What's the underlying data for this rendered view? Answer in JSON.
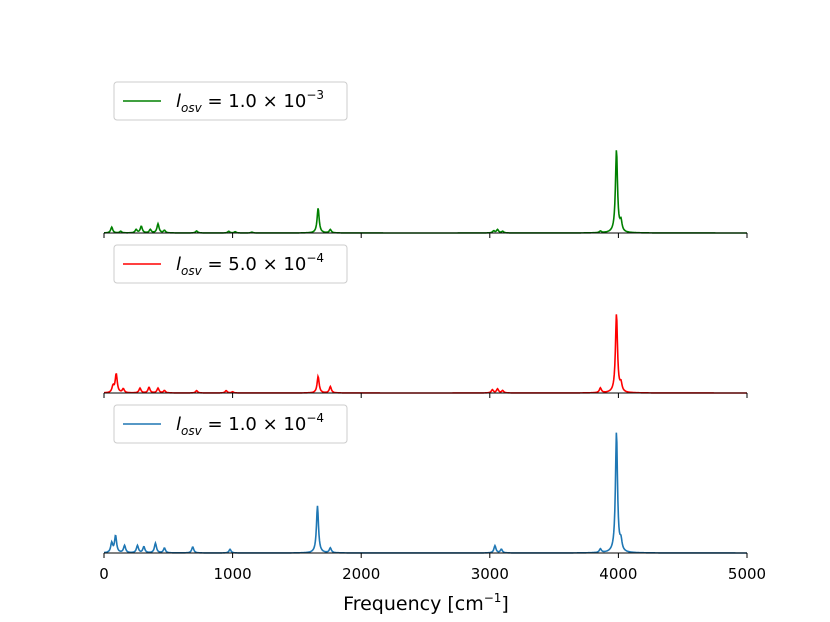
{
  "chart_data": {
    "type": "line",
    "xlabel": "Frequency [cm",
    "xlabel_sup": "−1",
    "xlabel_close": "]",
    "xlim": [
      0,
      5000
    ],
    "x_ticks": [
      0,
      1000,
      2000,
      3000,
      4000,
      5000
    ],
    "x_tick_labels": [
      "0",
      "1000",
      "2000",
      "3000",
      "4000",
      "5000"
    ],
    "grid": false,
    "panels": [
      {
        "legend": {
          "symbol": "l",
          "subscript": "osv",
          "eq": " = 1.0 × 10",
          "exp": "−3"
        },
        "legend_position": "upper-left",
        "color": "#008000",
        "ylim": [
          0,
          1.0
        ],
        "peaks": [
          {
            "x": 60,
            "y": 0.07
          },
          {
            "x": 130,
            "y": 0.02
          },
          {
            "x": 250,
            "y": 0.04
          },
          {
            "x": 290,
            "y": 0.08
          },
          {
            "x": 360,
            "y": 0.04
          },
          {
            "x": 420,
            "y": 0.11
          },
          {
            "x": 470,
            "y": 0.03
          },
          {
            "x": 720,
            "y": 0.025
          },
          {
            "x": 970,
            "y": 0.02
          },
          {
            "x": 1020,
            "y": 0.015
          },
          {
            "x": 1150,
            "y": 0.01
          },
          {
            "x": 1665,
            "y": 0.3
          },
          {
            "x": 1760,
            "y": 0.04
          },
          {
            "x": 3030,
            "y": 0.025
          },
          {
            "x": 3060,
            "y": 0.04
          },
          {
            "x": 3100,
            "y": 0.02
          },
          {
            "x": 3860,
            "y": 0.02
          },
          {
            "x": 3985,
            "y": 1.0
          },
          {
            "x": 4020,
            "y": 0.12
          }
        ]
      },
      {
        "legend": {
          "symbol": "l",
          "subscript": "osv",
          "eq": " = 5.0 × 10",
          "exp": "−4"
        },
        "legend_position": "upper-left",
        "color": "#ff0000",
        "ylim": [
          0,
          1.0
        ],
        "peaks": [
          {
            "x": 70,
            "y": 0.08
          },
          {
            "x": 95,
            "y": 0.24
          },
          {
            "x": 150,
            "y": 0.05
          },
          {
            "x": 280,
            "y": 0.06
          },
          {
            "x": 350,
            "y": 0.07
          },
          {
            "x": 420,
            "y": 0.06
          },
          {
            "x": 470,
            "y": 0.03
          },
          {
            "x": 720,
            "y": 0.03
          },
          {
            "x": 950,
            "y": 0.03
          },
          {
            "x": 1000,
            "y": 0.015
          },
          {
            "x": 1665,
            "y": 0.21
          },
          {
            "x": 1760,
            "y": 0.08
          },
          {
            "x": 3020,
            "y": 0.04
          },
          {
            "x": 3060,
            "y": 0.05
          },
          {
            "x": 3100,
            "y": 0.03
          },
          {
            "x": 3860,
            "y": 0.06
          },
          {
            "x": 3985,
            "y": 1.0
          },
          {
            "x": 4020,
            "y": 0.1
          }
        ]
      },
      {
        "legend": {
          "symbol": "l",
          "subscript": "osv",
          "eq": " = 1.0 × 10",
          "exp": "−4"
        },
        "legend_position": "upper-left",
        "color": "#1f77b4",
        "ylim": [
          0,
          1.0
        ],
        "peaks": [
          {
            "x": 60,
            "y": 0.08
          },
          {
            "x": 90,
            "y": 0.14
          },
          {
            "x": 160,
            "y": 0.06
          },
          {
            "x": 260,
            "y": 0.06
          },
          {
            "x": 310,
            "y": 0.05
          },
          {
            "x": 400,
            "y": 0.08
          },
          {
            "x": 470,
            "y": 0.04
          },
          {
            "x": 690,
            "y": 0.05
          },
          {
            "x": 980,
            "y": 0.03
          },
          {
            "x": 1660,
            "y": 0.39
          },
          {
            "x": 1760,
            "y": 0.04
          },
          {
            "x": 3040,
            "y": 0.06
          },
          {
            "x": 3090,
            "y": 0.03
          },
          {
            "x": 3860,
            "y": 0.03
          },
          {
            "x": 3985,
            "y": 1.0
          },
          {
            "x": 4020,
            "y": 0.08
          }
        ]
      }
    ]
  }
}
